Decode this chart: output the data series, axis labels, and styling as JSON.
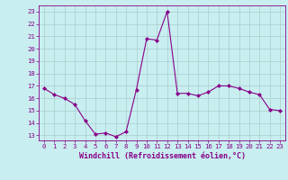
{
  "x": [
    0,
    1,
    2,
    3,
    4,
    5,
    6,
    7,
    8,
    9,
    10,
    11,
    12,
    13,
    14,
    15,
    16,
    17,
    18,
    19,
    20,
    21,
    22,
    23
  ],
  "y": [
    16.8,
    16.3,
    16.0,
    15.5,
    14.2,
    13.1,
    13.2,
    12.9,
    13.3,
    16.7,
    20.8,
    20.7,
    23.0,
    16.4,
    16.4,
    16.2,
    16.5,
    17.0,
    17.0,
    16.8,
    16.5,
    16.3,
    15.1,
    15.0
  ],
  "line_color": "#880088",
  "marker": "D",
  "marker_size": 2.0,
  "bg_color": "#c8eef0",
  "grid_color": "#aacccc",
  "xlabel": "Windchill (Refroidissement éolien,°C)",
  "ylabel_ticks": [
    13,
    14,
    15,
    16,
    17,
    18,
    19,
    20,
    21,
    22,
    23
  ],
  "xlim": [
    -0.5,
    23.5
  ],
  "ylim": [
    12.6,
    23.5
  ],
  "xticks": [
    0,
    1,
    2,
    3,
    4,
    5,
    6,
    7,
    8,
    9,
    10,
    11,
    12,
    13,
    14,
    15,
    16,
    17,
    18,
    19,
    20,
    21,
    22,
    23
  ],
  "tick_fontsize": 5.2,
  "xlabel_fontsize": 6.0
}
